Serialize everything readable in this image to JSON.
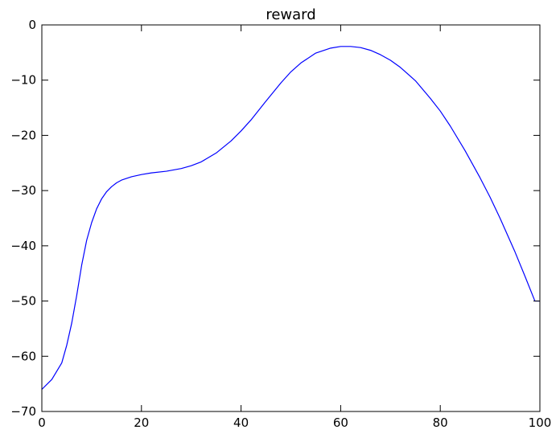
{
  "chart_data": {
    "type": "line",
    "title": "reward",
    "xlabel": "",
    "ylabel": "",
    "xlim": [
      0,
      100
    ],
    "ylim": [
      -70,
      0
    ],
    "xticks": [
      0,
      20,
      40,
      60,
      80,
      100
    ],
    "yticks": [
      0,
      -10,
      -20,
      -30,
      -40,
      -50,
      -60,
      -70
    ],
    "xtick_labels": [
      "0",
      "20",
      "40",
      "60",
      "80",
      "100"
    ],
    "ytick_labels": [
      "0",
      "−10",
      "−20",
      "−30",
      "−40",
      "−50",
      "−60",
      "−70"
    ],
    "grid": false,
    "legend": false,
    "series": [
      {
        "color": "#0000ff",
        "x": [
          0,
          2,
          4,
          5,
          6,
          7,
          8,
          9,
          10,
          11,
          12,
          13,
          14,
          15,
          16,
          18,
          20,
          22,
          25,
          28,
          30,
          32,
          35,
          38,
          40,
          42,
          45,
          48,
          50,
          52,
          55,
          58,
          60,
          62,
          64,
          66,
          68,
          70,
          72,
          75,
          78,
          80,
          82,
          85,
          88,
          90,
          92,
          95,
          97,
          99,
          100
        ],
        "y": [
          -66.0,
          -64.2,
          -61.2,
          -58.0,
          -54.0,
          -49.0,
          -43.5,
          -39.0,
          -35.8,
          -33.3,
          -31.5,
          -30.2,
          -29.3,
          -28.6,
          -28.1,
          -27.5,
          -27.1,
          -26.8,
          -26.5,
          -26.0,
          -25.5,
          -24.8,
          -23.2,
          -21.0,
          -19.2,
          -17.2,
          -13.8,
          -10.5,
          -8.5,
          -6.9,
          -5.1,
          -4.2,
          -3.9,
          -3.9,
          -4.1,
          -4.6,
          -5.4,
          -6.4,
          -7.7,
          -10.1,
          -13.3,
          -15.6,
          -18.3,
          -22.8,
          -27.7,
          -31.2,
          -35.0,
          -41.1,
          -45.5,
          -50.0,
          -50.0
        ]
      }
    ]
  }
}
